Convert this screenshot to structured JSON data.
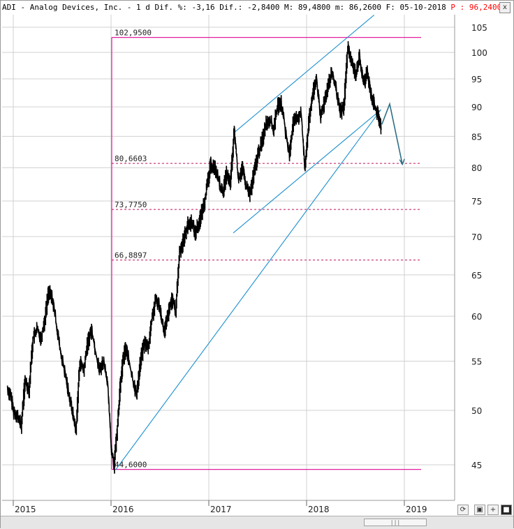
{
  "header": {
    "symbol_text": "ADI - Analog Devices, Inc. -  1 d Dif. %: -3,16 Dif.: -2,8400 M: 89,4800 m: 86,2600 F: 05-10-2018",
    "price_text": "P : 96,2400",
    "close_label": "x"
  },
  "colors": {
    "price": "#000000",
    "range_box": "#e020a0",
    "fib_lines": "#c0105a",
    "trendlines": "#1c8fd0",
    "projection_arrow": "#2f6f86",
    "grid": "#d0d0d0"
  },
  "toolbar": {
    "icons": [
      "refresh-icon",
      "save-icon",
      "crosshair-icon",
      "expand-icon"
    ],
    "scroll_label": "|||"
  },
  "chart_data": {
    "type": "line",
    "title": "ADI - Analog Devices, Inc.",
    "x_axis": {
      "tick_labels": [
        "2015",
        "2016",
        "2017",
        "2018",
        "2019"
      ]
    },
    "y_axis": {
      "scale": "log",
      "ylim": [
        43.5,
        108
      ],
      "tick_labels": [
        45,
        50,
        55,
        60,
        65,
        70,
        75,
        80,
        85,
        90,
        95,
        100,
        105
      ]
    },
    "grid": true,
    "series": [
      {
        "x": [
          2014.94,
          2014.97,
          2015.0,
          2015.04,
          2015.08,
          2015.12,
          2015.16,
          2015.2,
          2015.24,
          2015.28,
          2015.32,
          2015.36,
          2015.4,
          2015.44,
          2015.48,
          2015.52,
          2015.56,
          2015.6,
          2015.64,
          2015.68,
          2015.72,
          2015.76,
          2015.8,
          2015.84,
          2015.88,
          2015.92,
          2015.96,
          2016.0,
          2016.03,
          2016.06,
          2016.09,
          2016.12,
          2016.15,
          2016.18,
          2016.22,
          2016.26,
          2016.3,
          2016.34,
          2016.38,
          2016.42,
          2016.46,
          2016.5,
          2016.54,
          2016.58,
          2016.62,
          2016.66,
          2016.7,
          2016.74,
          2016.78,
          2016.82,
          2016.86,
          2016.9,
          2016.94,
          2016.98,
          2017.02,
          2017.06,
          2017.1,
          2017.14,
          2017.18,
          2017.22,
          2017.26,
          2017.3,
          2017.34,
          2017.38,
          2017.42,
          2017.46,
          2017.5,
          2017.54,
          2017.58,
          2017.62,
          2017.66,
          2017.7,
          2017.74,
          2017.78,
          2017.82,
          2017.86,
          2017.9,
          2017.94,
          2017.98,
          2018.02,
          2018.06,
          2018.1,
          2018.14,
          2018.18,
          2018.22,
          2018.26,
          2018.3,
          2018.34,
          2018.38,
          2018.42,
          2018.46,
          2018.5,
          2018.54,
          2018.58,
          2018.62,
          2018.66,
          2018.7,
          2018.74,
          2018.76
        ],
        "y": [
          52,
          51.5,
          50,
          49.5,
          48.5,
          53,
          52,
          57.5,
          58.5,
          57.5,
          59.5,
          63,
          62,
          59,
          56,
          54,
          52,
          50,
          48,
          55,
          54,
          57,
          58.5,
          56,
          54,
          55,
          53,
          46.5,
          45,
          48,
          52,
          55,
          56.5,
          55,
          53,
          51.5,
          55,
          57,
          56.5,
          60,
          62,
          61,
          58,
          60,
          62,
          60.5,
          68,
          69.5,
          71.5,
          72,
          70.5,
          72,
          74,
          77,
          80.5,
          80,
          78,
          76,
          79,
          77.5,
          86,
          78,
          80,
          77,
          76,
          79,
          82,
          84,
          87,
          88,
          86,
          90,
          90.5,
          86,
          82,
          87,
          88,
          89,
          80,
          87,
          92,
          95,
          88,
          91,
          94,
          96,
          93,
          89,
          90,
          101,
          98,
          96,
          99,
          94,
          96,
          92,
          90,
          88,
          86.5
        ]
      }
    ],
    "annotations": {
      "range_high": "102,9500",
      "range_low": "44,6000",
      "levels": [
        "80,6603",
        "73,7750",
        "66,8897"
      ],
      "projection": {
        "x": [
          2018.77,
          2018.85,
          2018.98
        ],
        "y": [
          87,
          90.5,
          80.5
        ]
      }
    }
  }
}
